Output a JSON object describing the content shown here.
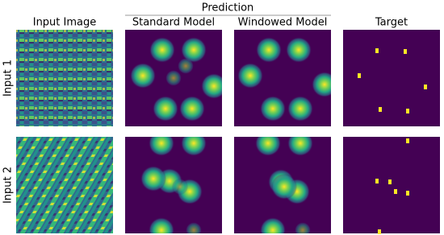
{
  "figure": {
    "group_header": "Prediction",
    "columns": [
      "Input Image",
      "Standard Model",
      "Windowed Model",
      "Target"
    ],
    "rows": [
      "Input 1",
      "Input 2"
    ]
  }
}
